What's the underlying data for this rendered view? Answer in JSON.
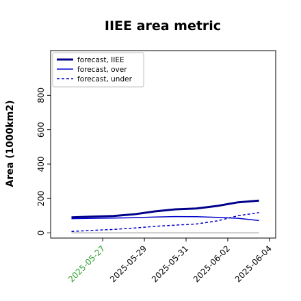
{
  "chart_data": {
    "type": "line",
    "title": "IIEE area metric",
    "ylabel": "Area (1000km2)",
    "xlabel": "",
    "y_ticks": [
      0,
      200,
      400,
      600,
      800
    ],
    "ylim": [
      -30,
      1060
    ],
    "x_ticks": [
      "2025-05-27",
      "2025-05-29",
      "2025-05-31",
      "2025-06-02",
      "2025-06-04"
    ],
    "x_tick_colors": [
      "#2ca02c",
      "#000000",
      "#000000",
      "#000000",
      "#000000"
    ],
    "x": [
      -0.5,
      0.5,
      1.5,
      2.5,
      3.5,
      4.5,
      5.5,
      6.5,
      7.5,
      8.5
    ],
    "xlim": [
      -1.5,
      9.3
    ],
    "grid": false,
    "legend": {
      "placement": "top-left"
    },
    "series": [
      {
        "name": "forecast, IIEE",
        "style": "solid-thick",
        "color": "#00008b",
        "values": [
          90,
          95,
          98,
          108,
          125,
          137,
          142,
          157,
          178,
          188
        ]
      },
      {
        "name": "forecast, over",
        "style": "solid",
        "color": "#0000cd",
        "values": [
          83,
          85,
          86,
          88,
          92,
          95,
          94,
          90,
          85,
          72
        ]
      },
      {
        "name": "forecast, under",
        "style": "dashed",
        "color": "#0000cd",
        "values": [
          8,
          15,
          20,
          28,
          38,
          45,
          52,
          70,
          100,
          118
        ]
      },
      {
        "name": "",
        "style": "baseline",
        "color": "#808080",
        "values": [
          0,
          0,
          0,
          0,
          0,
          0,
          0,
          0,
          0,
          0
        ]
      }
    ]
  }
}
